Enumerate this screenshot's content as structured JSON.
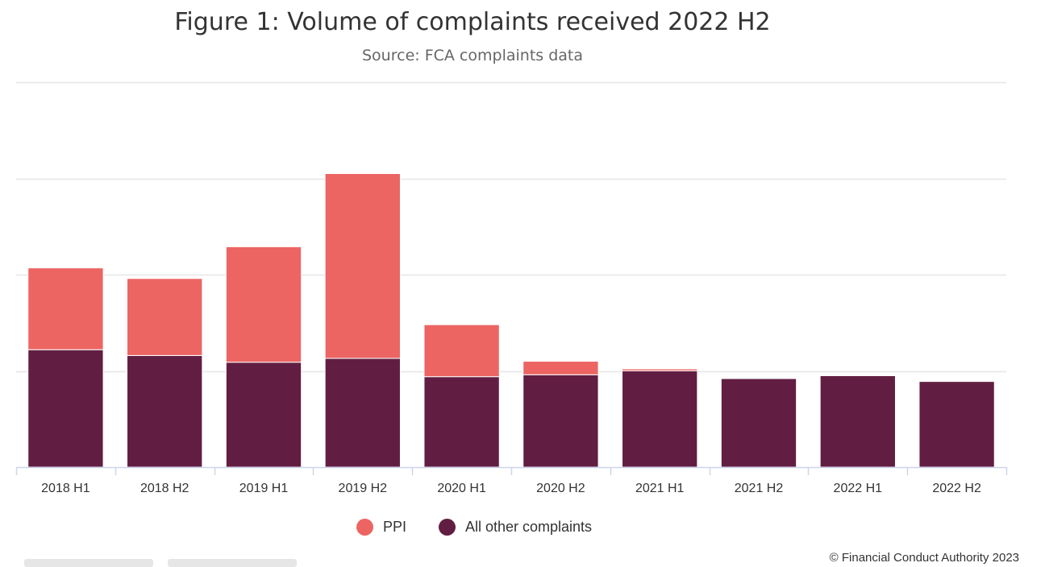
{
  "header": {
    "title": "Figure 1: Volume of complaints received 2022 H2",
    "subtitle": "Source: FCA complaints data"
  },
  "footer": {
    "credit": "© Financial Conduct Authority 2023"
  },
  "colors": {
    "ppi": "#ec6562",
    "other": "#621e42",
    "grid": "#e6e6e6",
    "axis": "#ccd6eb"
  },
  "chart_data": {
    "type": "bar",
    "stacked": true,
    "title": "Figure 1: Volume of complaints received 2022 H2",
    "subtitle": "Source: FCA complaints data",
    "categories": [
      "2018 H1",
      "2018 H2",
      "2019 H1",
      "2019 H2",
      "2020 H1",
      "2020 H2",
      "2021 H1",
      "2021 H2",
      "2022 H1",
      "2022 H2"
    ],
    "series": [
      {
        "name": "All other complaints",
        "values": [
          1.22,
          1.16,
          1.09,
          1.13,
          0.94,
          0.96,
          1.0,
          0.92,
          0.95,
          0.89
        ]
      },
      {
        "name": "PPI",
        "values": [
          0.85,
          0.8,
          1.2,
          1.92,
          0.54,
          0.14,
          0.02,
          0.0,
          0.0,
          0.0
        ]
      }
    ],
    "ylim": [
      0,
      4.0
    ],
    "yticks": [
      0,
      1,
      2,
      3,
      4
    ],
    "y_tick_labels_shown": false,
    "grid": true,
    "legend": "bottom-center"
  }
}
